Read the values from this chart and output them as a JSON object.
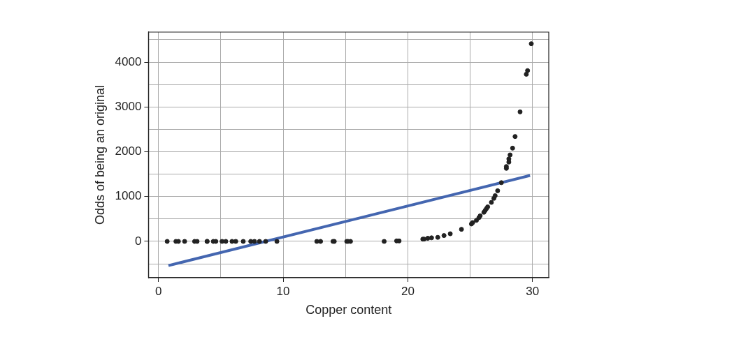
{
  "chart_data": {
    "type": "scatter",
    "xlabel": "Copper content",
    "ylabel": "Odds of being an original",
    "xlim": [
      -0.8,
      31.3
    ],
    "ylim": [
      -810,
      4670
    ],
    "xticks": [
      0,
      {
        "value": 5,
        "label": null
      },
      10,
      {
        "value": 15,
        "label": null
      },
      20,
      {
        "value": 25,
        "label": null
      },
      30
    ],
    "yticks": [
      {
        "value": -500,
        "label": null
      },
      0,
      {
        "value": 500,
        "label": null
      },
      1000,
      {
        "value": 1500,
        "label": null
      },
      2000,
      {
        "value": 2500,
        "label": null
      },
      3000,
      {
        "value": 3500,
        "label": null
      },
      4000,
      {
        "value": 4500,
        "label": null
      }
    ],
    "grid": true,
    "legend": false,
    "marker": "circle",
    "series": [
      {
        "color": "#222222",
        "x": [
          0.7,
          1.4,
          1.6,
          2.1,
          2.9,
          3.1,
          3.9,
          3.9,
          4.4,
          4.6,
          5.1,
          5.4,
          5.9,
          6.2,
          6.8,
          7.4,
          7.7,
          8.1,
          8.6,
          9.5,
          12.7,
          13.0,
          14.0,
          14.1,
          15.1,
          15.2,
          15.4,
          18.1,
          19.1,
          19.3,
          21.2,
          21.3,
          21.6,
          21.9,
          22.4,
          22.9,
          23.4,
          24.3,
          25.1,
          25.2,
          25.5,
          25.7,
          25.8,
          26.1,
          26.2,
          26.3,
          26.4,
          26.7,
          26.9,
          27.0,
          27.2,
          27.5,
          27.9,
          27.9,
          28.1,
          28.1,
          28.2,
          28.4,
          28.6,
          29.0,
          29.5,
          29.6,
          29.9
        ],
        "values": [
          0,
          0,
          0,
          0,
          0,
          0,
          0,
          0,
          0,
          0,
          0,
          0,
          0,
          0,
          0,
          0,
          0,
          0,
          0,
          0,
          0,
          0,
          0,
          0,
          0,
          0,
          0,
          0,
          10,
          10,
          50,
          50,
          70,
          80,
          90,
          130,
          170,
          270,
          390,
          420,
          470,
          530,
          570,
          650,
          690,
          730,
          770,
          870,
          960,
          1020,
          1130,
          1310,
          1630,
          1670,
          1770,
          1840,
          1930,
          2080,
          2340,
          2890,
          3730,
          3810,
          4410
        ]
      },
      {
        "type": "line",
        "color": "#4466b0",
        "line_style": "solid",
        "marker": "none",
        "x": [
          0.8,
          29.8
        ],
        "values": [
          -540,
          1470
        ]
      }
    ]
  }
}
